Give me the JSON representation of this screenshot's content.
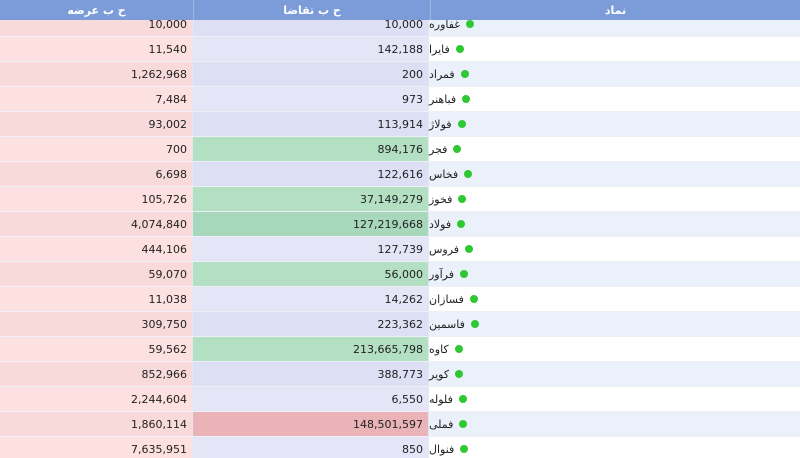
{
  "header": {
    "offer_label": "ح ب عرضه",
    "demand_label": "ح ب تقاضا",
    "symbol_label": "نماد"
  },
  "rows": [
    {
      "symbol": "غفاوره",
      "demand": "10,000",
      "offer": "10,000",
      "highlight": ""
    },
    {
      "symbol": "فایرا",
      "demand": "142,188",
      "offer": "11,540",
      "highlight": ""
    },
    {
      "symbol": "فمراد",
      "demand": "200",
      "offer": "1,262,968",
      "highlight": ""
    },
    {
      "symbol": "فباهنر",
      "demand": "973",
      "offer": "7,484",
      "highlight": ""
    },
    {
      "symbol": "فولاژ",
      "demand": "113,914",
      "offer": "93,002",
      "highlight": ""
    },
    {
      "symbol": "فجر",
      "demand": "894,176",
      "offer": "700",
      "highlight": "green"
    },
    {
      "symbol": "فخاس",
      "demand": "122,616",
      "offer": "6,698",
      "highlight": ""
    },
    {
      "symbol": "فخوز",
      "demand": "37,149,279",
      "offer": "105,726",
      "highlight": "green"
    },
    {
      "symbol": "فولاد",
      "demand": "127,219,668",
      "offer": "4,074,840",
      "highlight": "green2"
    },
    {
      "symbol": "فروس",
      "demand": "127,739",
      "offer": "444,106",
      "highlight": ""
    },
    {
      "symbol": "فرآور",
      "demand": "56,000",
      "offer": "59,070",
      "highlight": "green"
    },
    {
      "symbol": "فسازان",
      "demand": "14,262",
      "offer": "11,038",
      "highlight": ""
    },
    {
      "symbol": "فاسمین",
      "demand": "223,362",
      "offer": "309,750",
      "highlight": ""
    },
    {
      "symbol": "کاوه",
      "demand": "213,665,798",
      "offer": "59,562",
      "highlight": "green"
    },
    {
      "symbol": "کویر",
      "demand": "388,773",
      "offer": "852,966",
      "highlight": ""
    },
    {
      "symbol": "فلوله",
      "demand": "6,550",
      "offer": "2,244,604",
      "highlight": ""
    },
    {
      "symbol": "فملی",
      "demand": "148,501,597",
      "offer": "1,860,114",
      "highlight": "red"
    },
    {
      "symbol": "فنوال",
      "demand": "850",
      "offer": "7,635,951",
      "highlight": ""
    }
  ]
}
